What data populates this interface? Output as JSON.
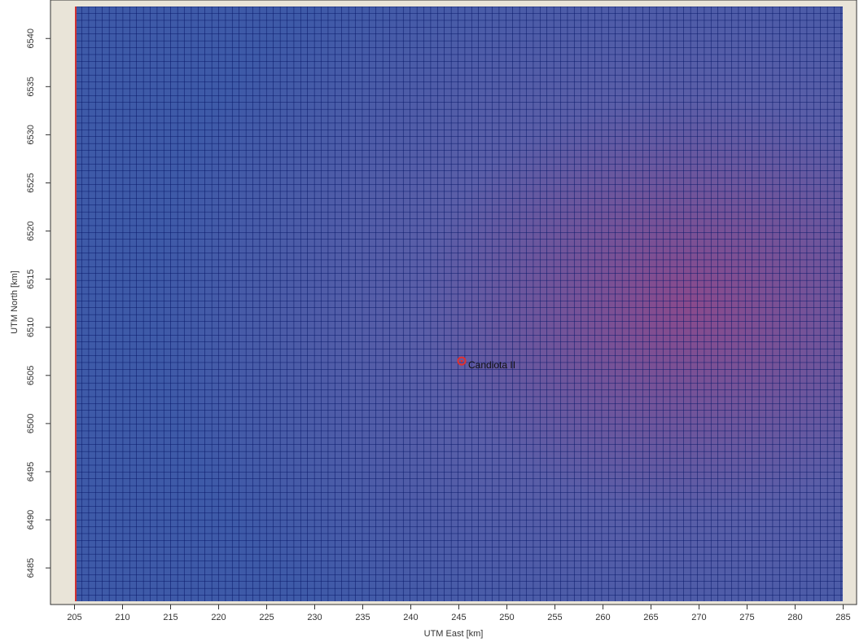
{
  "chart_data": {
    "type": "scatter",
    "x_label": "UTM East [km]",
    "y_label": "UTM North [km]",
    "xlim": [
      202.5,
      286.4
    ],
    "ylim": [
      6481.2,
      6544.0
    ],
    "xticks": [
      205,
      210,
      215,
      220,
      225,
      230,
      235,
      240,
      245,
      250,
      255,
      260,
      265,
      270,
      275,
      280,
      285
    ],
    "yticks": [
      6485,
      6490,
      6495,
      6500,
      6505,
      6510,
      6515,
      6520,
      6525,
      6530,
      6535,
      6540
    ],
    "series": [
      {
        "name": "Candiota II",
        "color": "#e03030",
        "x": [
          245.3
        ],
        "y": [
          6506.5
        ]
      }
    ]
  }
}
